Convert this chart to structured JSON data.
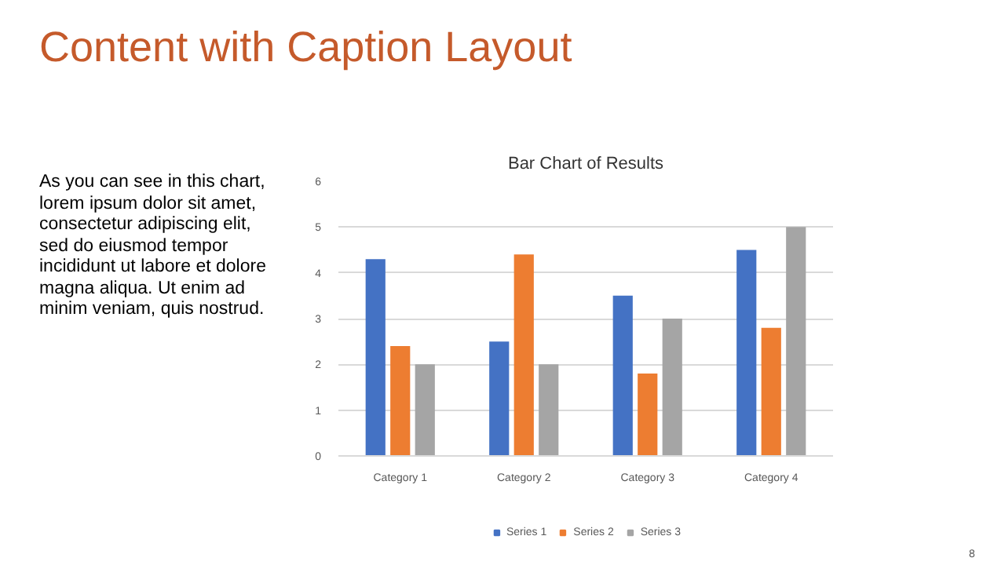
{
  "chart_data": {
    "type": "bar",
    "title": "Bar Chart of Results",
    "categories": [
      "Category 1",
      "Category 2",
      "Category 3",
      "Category 4"
    ],
    "series": [
      {
        "name": "Series 1",
        "color": "#4472c4",
        "values": [
          4.3,
          2.5,
          3.5,
          4.5
        ]
      },
      {
        "name": "Series 2",
        "color": "#ed7d31",
        "values": [
          2.4,
          4.4,
          1.8,
          2.8
        ]
      },
      {
        "name": "Series 3",
        "color": "#a5a5a5",
        "values": [
          2,
          2,
          3,
          5
        ]
      }
    ],
    "ylim": [
      0,
      6
    ],
    "yticks": [
      0,
      1,
      2,
      3,
      4,
      5,
      6
    ],
    "grid": "y",
    "legend": "bottom",
    "annotations": [
      "Content with Caption Layout",
      "As you can see in this chart,\nlorem ipsum dolor sit amet,\nconsectetur adipiscing elit,\nsed do eiusmod tempor\nincididunt ut labore et dolore\nmagna aliqua. Ut enim ad\nminim veniam, quis nostrud.",
      "8"
    ]
  }
}
